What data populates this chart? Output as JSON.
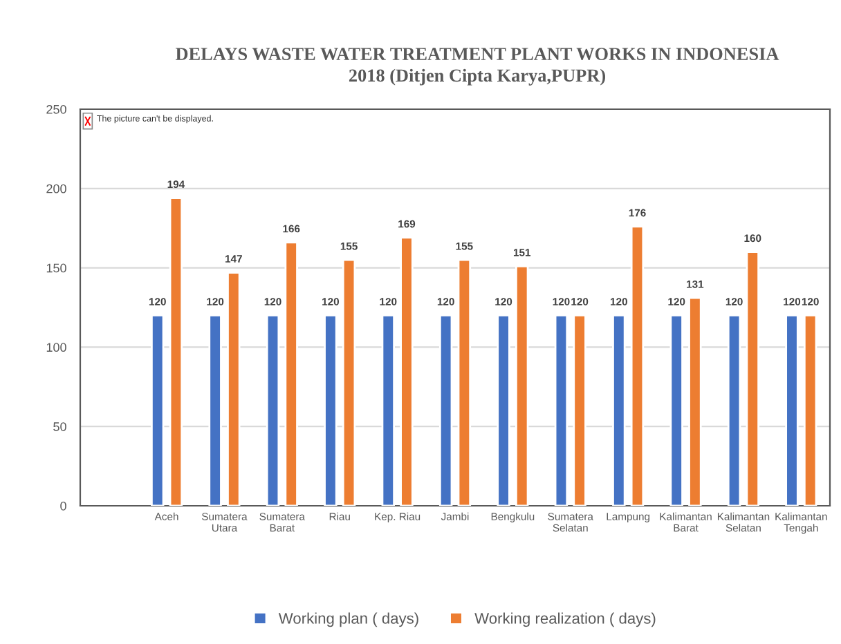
{
  "chart_data": {
    "type": "bar",
    "title": "DELAYS WASTE WATER TREATMENT PLANT WORKS IN INDONESIA\n2018 (Ditjen Cipta Karya,PUPR)",
    "categories": [
      null,
      "Aceh",
      "Sumatera\nUtara",
      "Sumatera\nBarat",
      "Riau",
      "Kep. Riau",
      "Jambi",
      "Bengkulu",
      "Sumatera\nSelatan",
      "Lampung",
      "Kalimantan\nBarat",
      "Kalimantan\nSelatan",
      "Kalimantan\nTengah"
    ],
    "series": [
      {
        "name": "Working plan ( days)",
        "color": "#4472c4",
        "values": [
          null,
          120,
          120,
          120,
          120,
          120,
          120,
          120,
          120,
          120,
          120,
          120,
          120
        ]
      },
      {
        "name": "Working realization ( days)",
        "color": "#ed7d31",
        "values": [
          null,
          194,
          147,
          166,
          155,
          169,
          155,
          151,
          120,
          176,
          131,
          160,
          120
        ]
      }
    ],
    "ylim": [
      0,
      250
    ],
    "yticks": [
      0,
      50,
      100,
      150,
      200,
      250
    ],
    "grid": "y",
    "legend": "bottom",
    "data_labels": true,
    "annotations": [
      "The picture can't be displayed."
    ]
  }
}
